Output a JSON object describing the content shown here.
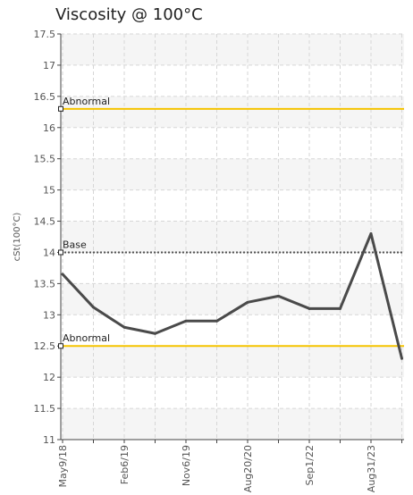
{
  "chart_data": {
    "type": "line",
    "title": "Viscosity @ 100°C",
    "ylabel": "cSt(100°C)",
    "xlabel": "",
    "ylim": [
      11,
      17.5
    ],
    "yticks": [
      "11",
      "11.5",
      "12",
      "12.5",
      "13",
      "13.5",
      "14",
      "14.5",
      "15",
      "15.5",
      "16",
      "16.5",
      "17",
      "17.5"
    ],
    "x_tick_labels": [
      "May9/18",
      "Feb6/19",
      "Nov6/19",
      "Aug20/20",
      "Sep1/22",
      "Aug31/23"
    ],
    "x_tick_sample_index": [
      0,
      2,
      4,
      6,
      8,
      10
    ],
    "grid": true,
    "series": [
      {
        "values": [
          13.65,
          13.12,
          12.8,
          12.7,
          12.9,
          12.9,
          13.2,
          13.3,
          13.1,
          13.1,
          14.3,
          12.3
        ]
      }
    ],
    "reference_lines": [
      {
        "label": "Abnormal",
        "value": 16.3,
        "color": "#f5c400",
        "style": "solid"
      },
      {
        "label": "Base",
        "value": 14.0,
        "color": "#555555",
        "style": "dotted"
      },
      {
        "label": "Abnormal",
        "value": 12.5,
        "color": "#f5c400",
        "style": "solid"
      }
    ],
    "colors": {
      "line": "#4a4a4a",
      "band": "#f5f5f5",
      "grid": "#d6d6d6"
    }
  }
}
